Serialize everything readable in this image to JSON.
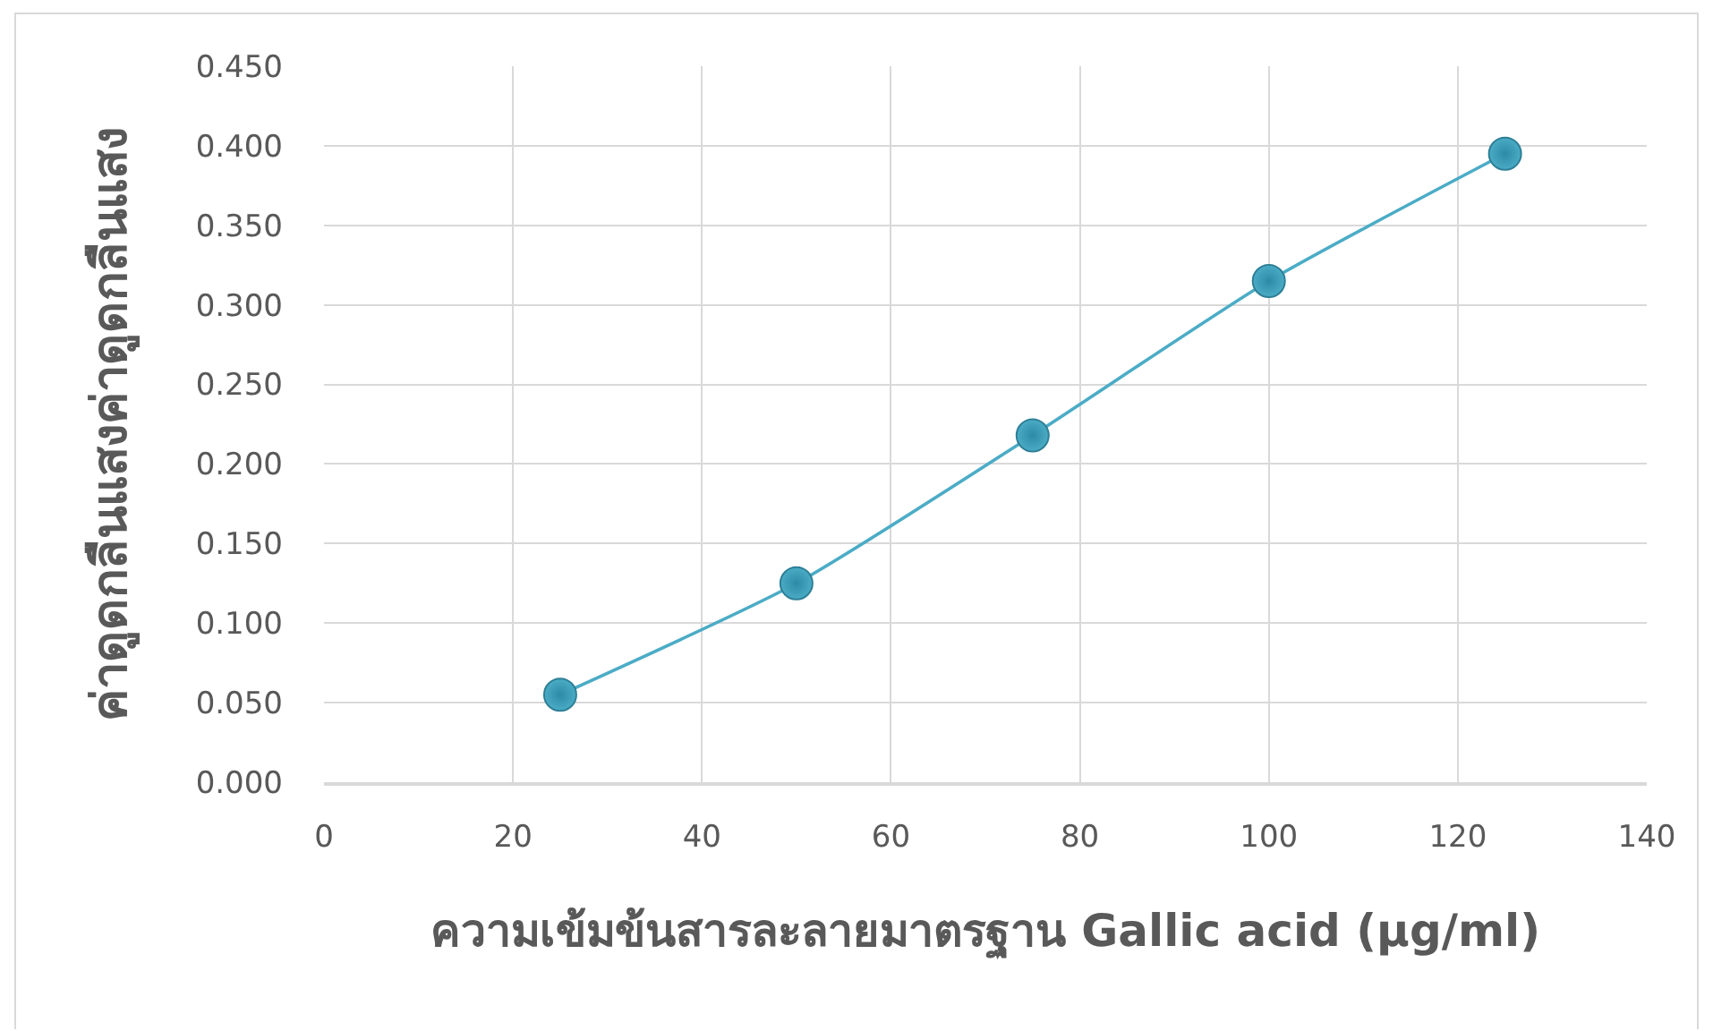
{
  "chart_data": {
    "type": "line",
    "xlabel": "ความเข้มข้นสารละลายมาตรฐาน Gallic acid (µg/ml)",
    "ylabel": "ค่าดูดกลืนแสงค่าดูดกลืนแสง",
    "x": [
      25,
      50,
      75,
      100,
      125
    ],
    "series": [
      {
        "color": "#4bacc6",
        "values": [
          0.055,
          0.125,
          0.218,
          0.315,
          0.395
        ]
      }
    ],
    "xlim": [
      0,
      140
    ],
    "xticks": [
      0,
      20,
      40,
      60,
      80,
      100,
      120,
      140
    ],
    "ylim": [
      0,
      0.45
    ],
    "yticks": [
      {
        "value": 0,
        "label": "0.000"
      },
      {
        "value": 0.05,
        "label": "0.050"
      },
      {
        "value": 0.1,
        "label": "0.100"
      },
      {
        "value": 0.15,
        "label": "0.150"
      },
      {
        "value": 0.2,
        "label": "0.200"
      },
      {
        "value": 0.25,
        "label": "0.250"
      },
      {
        "value": 0.3,
        "label": "0.300"
      },
      {
        "value": 0.35,
        "label": "0.350"
      },
      {
        "value": 0.4,
        "label": "0.400"
      },
      {
        "value": 0.45,
        "label": "0.450"
      }
    ],
    "grid": true,
    "marker": "circle",
    "line_style": "solid"
  }
}
